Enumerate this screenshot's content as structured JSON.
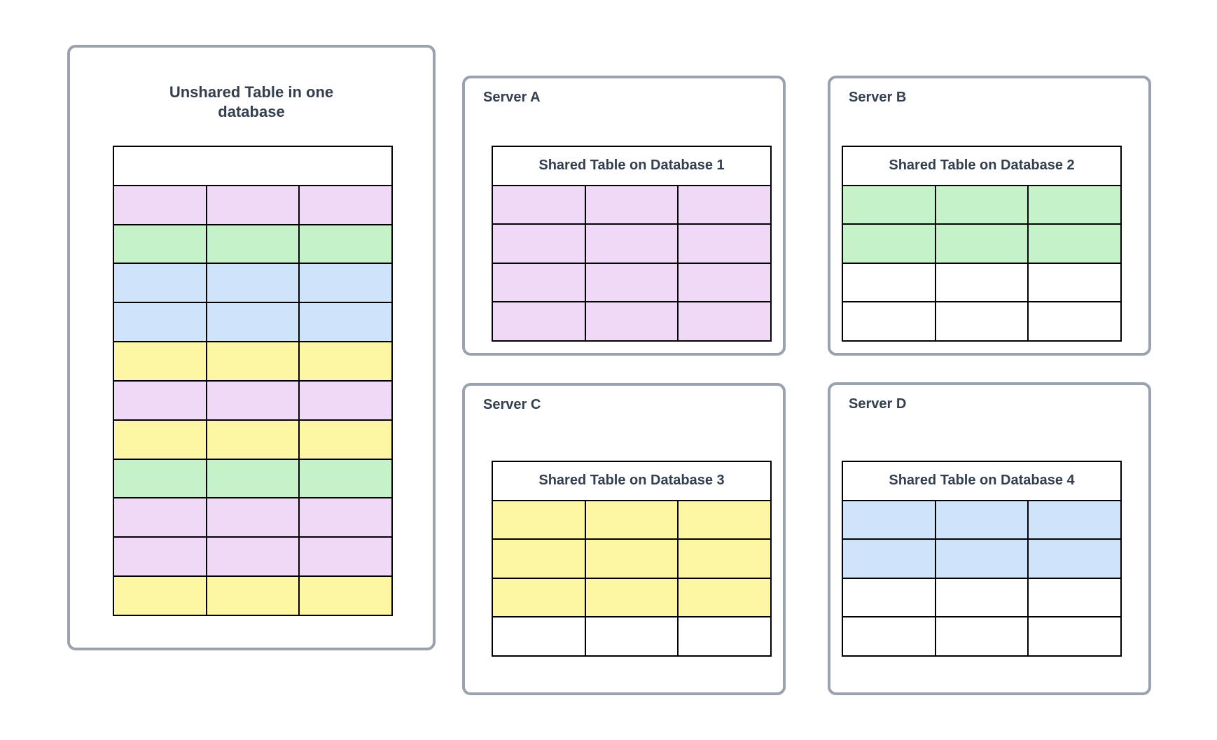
{
  "colors": {
    "pink": "#F0D9F7",
    "green": "#C6F2C9",
    "blue": "#CFE3FA",
    "yellow": "#FDF6A2",
    "white": "#FFFFFF",
    "panel_border": "#9AA2AD",
    "table_border": "#000000",
    "text": "#333F4F"
  },
  "unsharded": {
    "title": "Unshared Table in one database",
    "header": "",
    "columns": 3,
    "rows": [
      "pink",
      "green",
      "blue",
      "blue",
      "yellow",
      "pink",
      "yellow",
      "green",
      "pink",
      "pink",
      "yellow"
    ]
  },
  "servers": [
    {
      "label": "Server A",
      "table_title": "Shared Table on Database 1",
      "columns": 3,
      "rows": [
        "pink",
        "pink",
        "pink",
        "pink"
      ]
    },
    {
      "label": "Server B",
      "table_title": "Shared Table on Database 2",
      "columns": 3,
      "rows": [
        "green",
        "green",
        "white",
        "white"
      ]
    },
    {
      "label": "Server C",
      "table_title": "Shared Table on Database 3",
      "columns": 3,
      "rows": [
        "yellow",
        "yellow",
        "yellow",
        "white"
      ]
    },
    {
      "label": "Server D",
      "table_title": "Shared Table on Database 4",
      "columns": 3,
      "rows": [
        "blue",
        "blue",
        "white",
        "white"
      ]
    }
  ]
}
